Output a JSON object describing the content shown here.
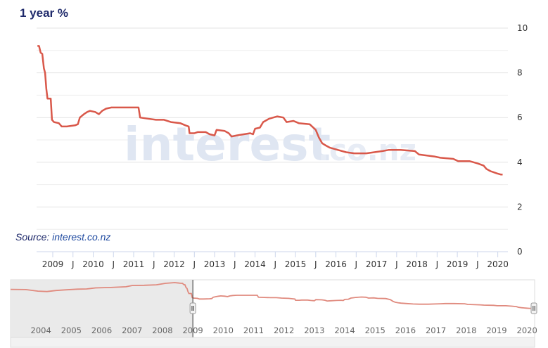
{
  "title": "1 year %",
  "source": {
    "prefix": "Source:",
    "link": "interest.co.nz"
  },
  "watermark": {
    "main": "interest",
    "suffix": ".co.nz"
  },
  "colors": {
    "line": "#d9584a",
    "title": "#1f2a6b",
    "nav_line": "#e08a7e",
    "mask": "#e6e6e6"
  },
  "chart_data": {
    "type": "line",
    "title": "1 year %",
    "ylim": [
      0,
      10
    ],
    "yticks": [
      0,
      2,
      4,
      6,
      8,
      10
    ],
    "y_axis_position": "right",
    "grid": true,
    "xlim": [
      2008.6,
      2020.25
    ],
    "xticks": [
      {
        "x": 2009,
        "label": "2009"
      },
      {
        "x": 2009.5,
        "label": "J"
      },
      {
        "x": 2010,
        "label": "2010"
      },
      {
        "x": 2010.5,
        "label": "J"
      },
      {
        "x": 2011,
        "label": "2011"
      },
      {
        "x": 2011.5,
        "label": "J"
      },
      {
        "x": 2012,
        "label": "2012"
      },
      {
        "x": 2012.5,
        "label": "J"
      },
      {
        "x": 2013,
        "label": "2013"
      },
      {
        "x": 2013.5,
        "label": "J"
      },
      {
        "x": 2014,
        "label": "2014"
      },
      {
        "x": 2014.5,
        "label": "J"
      },
      {
        "x": 2015,
        "label": "2015"
      },
      {
        "x": 2015.5,
        "label": "J"
      },
      {
        "x": 2016,
        "label": "2016"
      },
      {
        "x": 2016.5,
        "label": "J"
      },
      {
        "x": 2017,
        "label": "2017"
      },
      {
        "x": 2017.5,
        "label": "J"
      },
      {
        "x": 2018,
        "label": "2018"
      },
      {
        "x": 2018.5,
        "label": "J"
      },
      {
        "x": 2019,
        "label": "2019"
      },
      {
        "x": 2019.5,
        "label": "J"
      },
      {
        "x": 2020,
        "label": "2020"
      }
    ],
    "series": [
      {
        "points": [
          [
            2008.62,
            9.2
          ],
          [
            2008.66,
            9.2
          ],
          [
            2008.7,
            8.9
          ],
          [
            2008.74,
            8.85
          ],
          [
            2008.78,
            8.2
          ],
          [
            2008.81,
            8.0
          ],
          [
            2008.84,
            7.3
          ],
          [
            2008.87,
            6.85
          ],
          [
            2008.95,
            6.85
          ],
          [
            2008.98,
            5.9
          ],
          [
            2009.03,
            5.8
          ],
          [
            2009.15,
            5.75
          ],
          [
            2009.22,
            5.6
          ],
          [
            2009.35,
            5.6
          ],
          [
            2009.55,
            5.65
          ],
          [
            2009.62,
            5.7
          ],
          [
            2009.67,
            6.0
          ],
          [
            2009.77,
            6.15
          ],
          [
            2009.85,
            6.25
          ],
          [
            2009.92,
            6.3
          ],
          [
            2010.05,
            6.25
          ],
          [
            2010.14,
            6.15
          ],
          [
            2010.22,
            6.3
          ],
          [
            2010.32,
            6.4
          ],
          [
            2010.45,
            6.45
          ],
          [
            2010.85,
            6.45
          ],
          [
            2011.12,
            6.45
          ],
          [
            2011.16,
            6.0
          ],
          [
            2011.35,
            5.95
          ],
          [
            2011.55,
            5.9
          ],
          [
            2011.75,
            5.9
          ],
          [
            2011.92,
            5.8
          ],
          [
            2012.15,
            5.75
          ],
          [
            2012.28,
            5.65
          ],
          [
            2012.36,
            5.6
          ],
          [
            2012.38,
            5.3
          ],
          [
            2012.5,
            5.3
          ],
          [
            2012.58,
            5.35
          ],
          [
            2012.78,
            5.35
          ],
          [
            2012.88,
            5.25
          ],
          [
            2013.0,
            5.2
          ],
          [
            2013.05,
            5.45
          ],
          [
            2013.25,
            5.4
          ],
          [
            2013.35,
            5.3
          ],
          [
            2013.42,
            5.15
          ],
          [
            2013.55,
            5.2
          ],
          [
            2013.72,
            5.25
          ],
          [
            2013.88,
            5.3
          ],
          [
            2013.95,
            5.25
          ],
          [
            2014.0,
            5.5
          ],
          [
            2014.12,
            5.55
          ],
          [
            2014.2,
            5.8
          ],
          [
            2014.35,
            5.95
          ],
          [
            2014.55,
            6.05
          ],
          [
            2014.7,
            6.0
          ],
          [
            2014.78,
            5.8
          ],
          [
            2014.95,
            5.85
          ],
          [
            2015.08,
            5.75
          ],
          [
            2015.35,
            5.7
          ],
          [
            2015.5,
            5.45
          ],
          [
            2015.58,
            5.1
          ],
          [
            2015.66,
            4.85
          ],
          [
            2015.75,
            4.75
          ],
          [
            2015.85,
            4.65
          ],
          [
            2016.05,
            4.55
          ],
          [
            2016.25,
            4.45
          ],
          [
            2016.45,
            4.4
          ],
          [
            2016.75,
            4.4
          ],
          [
            2016.95,
            4.45
          ],
          [
            2017.15,
            4.5
          ],
          [
            2017.3,
            4.55
          ],
          [
            2017.6,
            4.55
          ],
          [
            2017.95,
            4.5
          ],
          [
            2018.05,
            4.35
          ],
          [
            2018.45,
            4.25
          ],
          [
            2018.58,
            4.2
          ],
          [
            2018.9,
            4.15
          ],
          [
            2019.02,
            4.05
          ],
          [
            2019.3,
            4.05
          ],
          [
            2019.5,
            3.95
          ],
          [
            2019.65,
            3.85
          ],
          [
            2019.72,
            3.7
          ],
          [
            2019.82,
            3.6
          ],
          [
            2019.9,
            3.55
          ],
          [
            2019.98,
            3.5
          ],
          [
            2020.08,
            3.45
          ],
          [
            2020.12,
            3.45
          ]
        ]
      }
    ]
  },
  "navigator": {
    "xlim": [
      2003.0,
      2020.25
    ],
    "xticks": [
      {
        "x": 2004,
        "label": "2004"
      },
      {
        "x": 2005,
        "label": "2005"
      },
      {
        "x": 2006,
        "label": "2006"
      },
      {
        "x": 2007,
        "label": "2007"
      },
      {
        "x": 2008,
        "label": "2008"
      },
      {
        "x": 2009,
        "label": "2009"
      },
      {
        "x": 2010,
        "label": "2010"
      },
      {
        "x": 2011,
        "label": "2011"
      },
      {
        "x": 2012,
        "label": "2012"
      },
      {
        "x": 2013,
        "label": "2013"
      },
      {
        "x": 2014,
        "label": "2014"
      },
      {
        "x": 2015,
        "label": "2015"
      },
      {
        "x": 2016,
        "label": "2016"
      },
      {
        "x": 2017,
        "label": "2017"
      },
      {
        "x": 2018,
        "label": "2018"
      },
      {
        "x": 2019,
        "label": "2019"
      },
      {
        "x": 2020,
        "label": "2020"
      }
    ],
    "selected_range": [
      2009,
      2020.25
    ],
    "history": [
      [
        2003.0,
        7.8
      ],
      [
        2003.5,
        7.75
      ],
      [
        2003.9,
        7.4
      ],
      [
        2004.2,
        7.3
      ],
      [
        2004.5,
        7.55
      ],
      [
        2004.8,
        7.7
      ],
      [
        2005.2,
        7.85
      ],
      [
        2005.5,
        7.9
      ],
      [
        2005.8,
        8.15
      ],
      [
        2006.3,
        8.25
      ],
      [
        2006.8,
        8.4
      ],
      [
        2007.0,
        8.7
      ],
      [
        2007.4,
        8.75
      ],
      [
        2007.8,
        8.85
      ],
      [
        2008.1,
        9.2
      ],
      [
        2008.4,
        9.35
      ],
      [
        2008.62,
        9.2
      ]
    ]
  }
}
